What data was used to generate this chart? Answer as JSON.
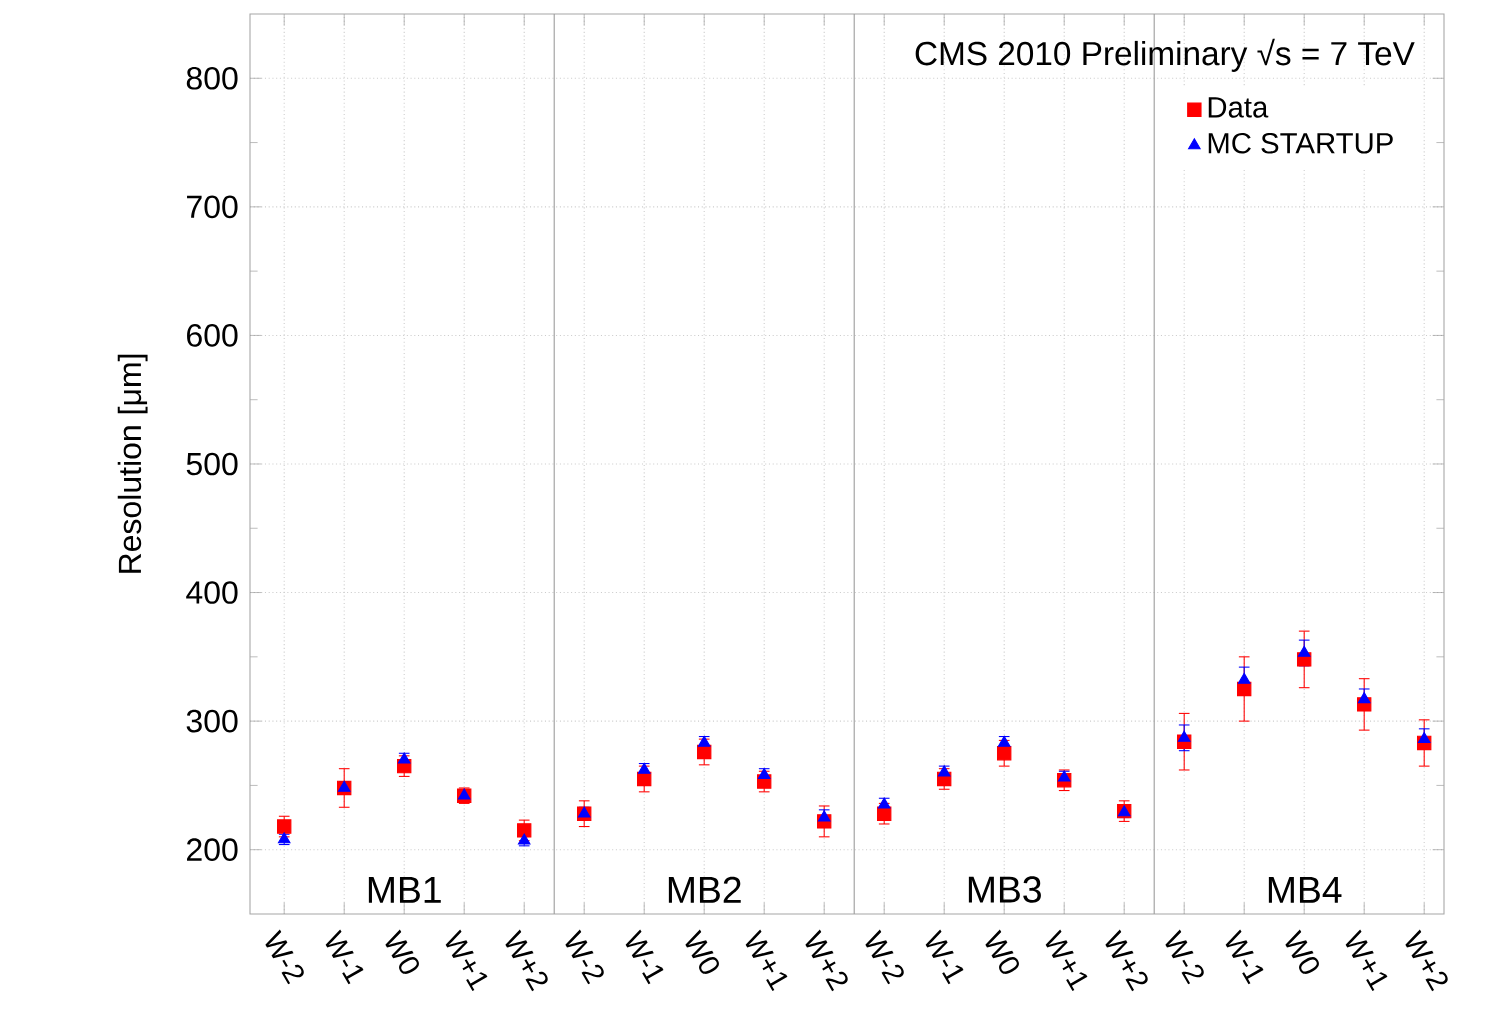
{
  "chart_data": {
    "type": "scatter",
    "ylabel": "Resolution [μm]",
    "categories": [
      "W-2",
      "W-1",
      "W0",
      "W+1",
      "W+2",
      "W-2",
      "W-1",
      "W0",
      "W+1",
      "W+2",
      "W-2",
      "W-1",
      "W0",
      "W+1",
      "W+2",
      "W-2",
      "W-1",
      "W0",
      "W+1",
      "W+2"
    ],
    "series": [
      {
        "name": "Data",
        "color": "#ff0000",
        "marker": "square",
        "values": [
          218,
          248,
          265,
          242,
          215,
          228,
          255,
          276,
          253,
          222,
          228,
          255,
          275,
          254,
          230,
          284,
          325,
          348,
          313,
          283
        ],
        "errors": [
          8,
          15,
          8,
          6,
          8,
          10,
          10,
          10,
          8,
          12,
          8,
          8,
          10,
          8,
          8,
          22,
          25,
          22,
          20,
          18
        ]
      },
      {
        "name": "MC STARTUP",
        "color": "#0000ff",
        "marker": "triangle",
        "values": [
          208,
          248,
          270,
          242,
          207,
          228,
          262,
          283,
          258,
          225,
          235,
          260,
          283,
          256,
          229,
          287,
          332,
          353,
          317,
          286
        ],
        "errors": [
          4,
          5,
          5,
          4,
          4,
          5,
          5,
          5,
          5,
          6,
          5,
          5,
          5,
          5,
          4,
          10,
          10,
          10,
          8,
          8
        ]
      }
    ],
    "ylim": [
      150,
      850
    ],
    "yticks": [
      200,
      300,
      400,
      500,
      600,
      700,
      800
    ],
    "annotations": [
      "CMS 2010 Preliminary √s = 7 TeV",
      "MB1",
      "MB2",
      "MB3",
      "MB4"
    ],
    "grid": true,
    "legend": "top right"
  }
}
